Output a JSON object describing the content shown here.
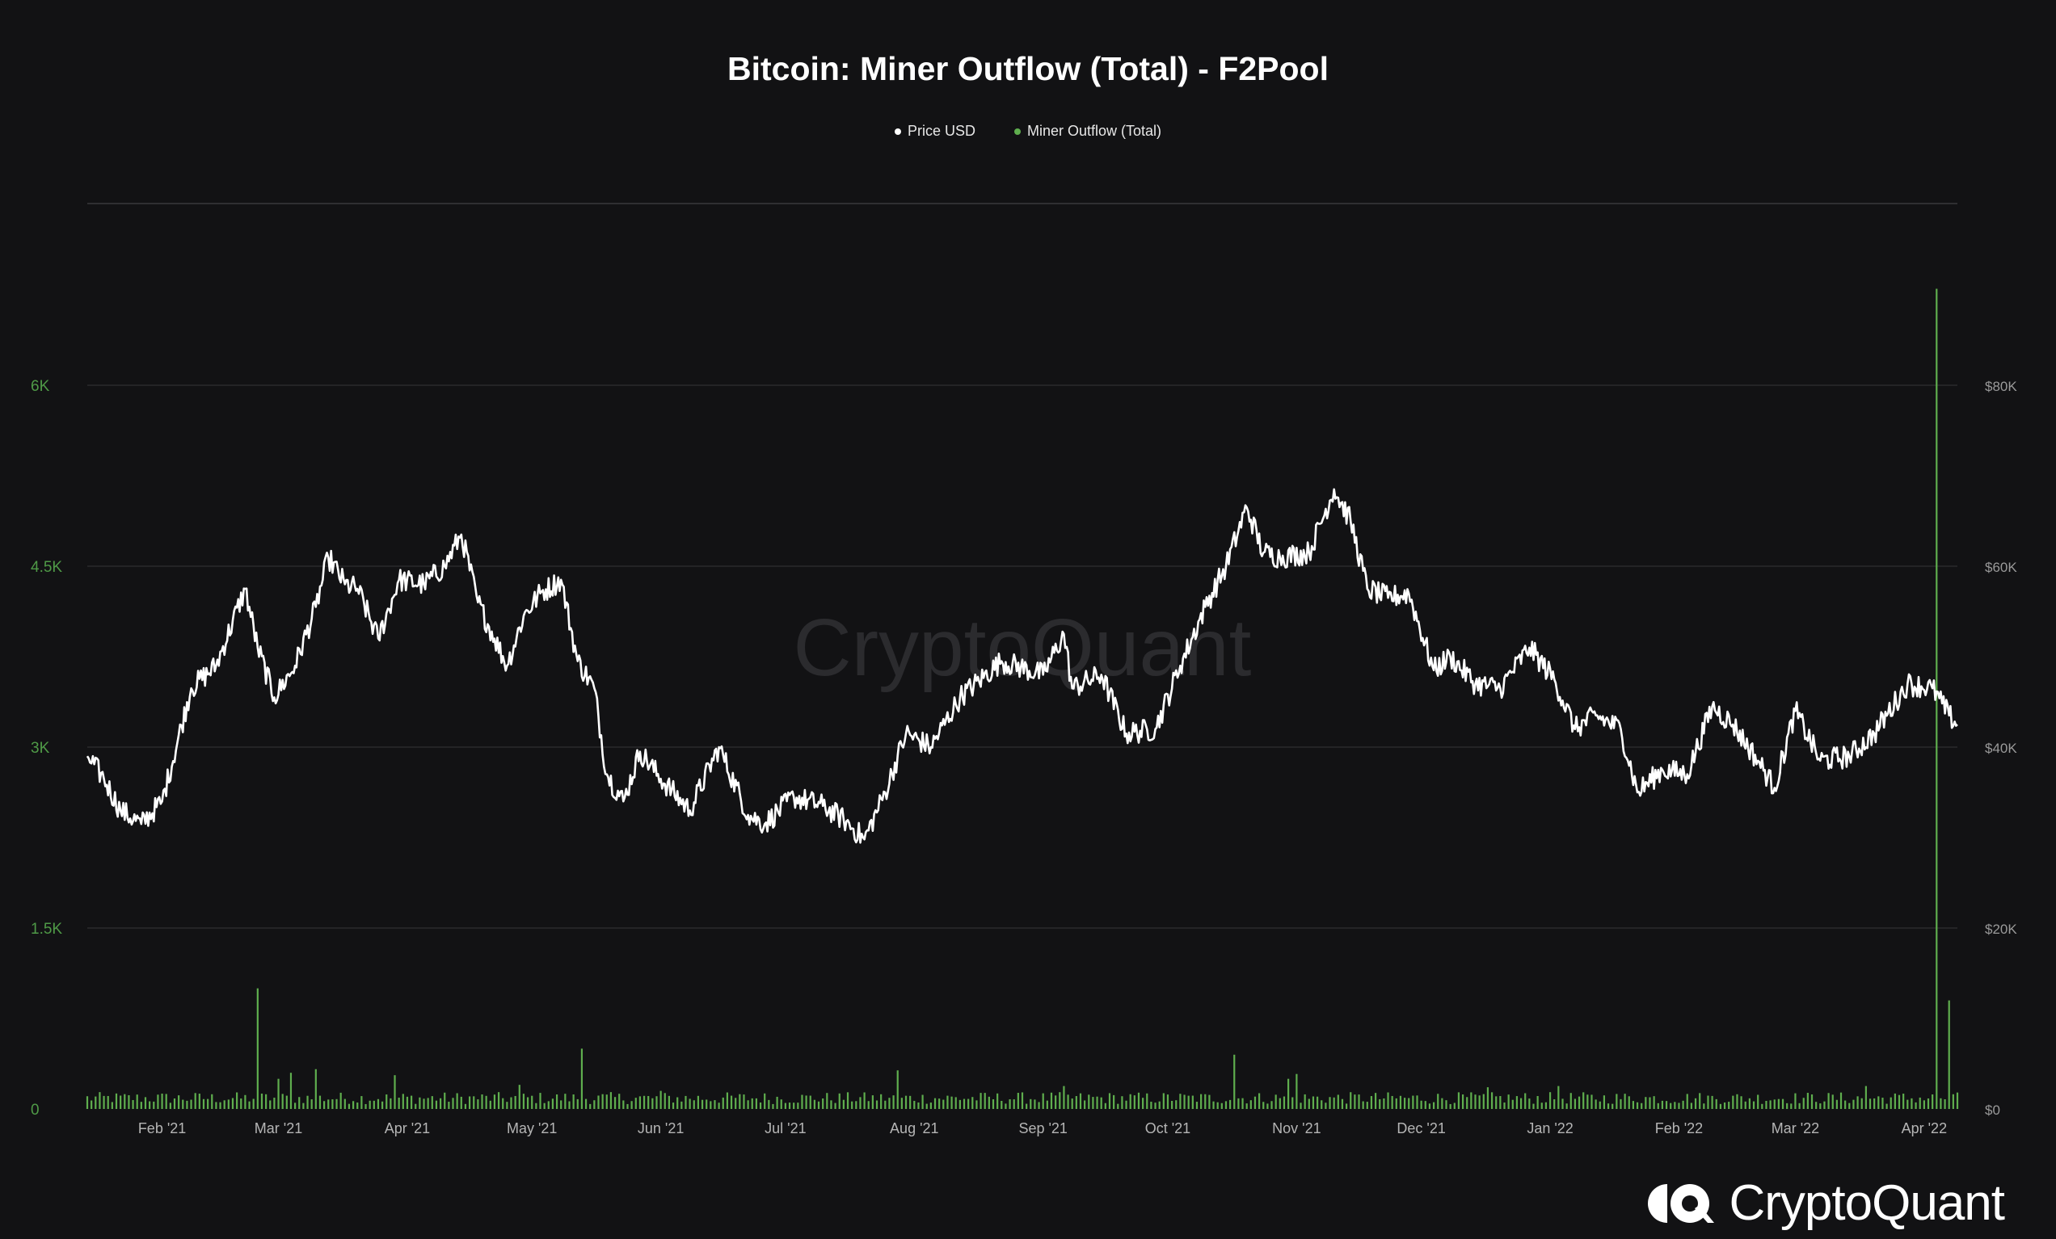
{
  "header": {
    "title": "Bitcoin: Miner Outflow (Total) - F2Pool"
  },
  "brand": {
    "name": "CryptoQuant",
    "watermark": "CryptoQuant"
  },
  "colors": {
    "price_line": "#ffffff",
    "outflow_bars": "#5fae4e",
    "left_axis_text": "#4f9a47",
    "right_axis_text": "#9a9a9a",
    "grid": "#2a2a2c",
    "background": "#121214"
  },
  "chart_data": {
    "type": "line",
    "title": "Bitcoin: Miner Outflow (Total) - F2Pool",
    "legend": {
      "placement": "top-center",
      "items": [
        "Price USD",
        "Miner Outflow (Total)"
      ]
    },
    "grid": true,
    "x_range": [
      "2021-01-14",
      "2022-04-09"
    ],
    "x_ticks": [
      {
        "date": "2021-02-01",
        "label": "Feb '21"
      },
      {
        "date": "2021-03-01",
        "label": "Mar '21"
      },
      {
        "date": "2021-04-01",
        "label": "Apr '21"
      },
      {
        "date": "2021-05-01",
        "label": "May '21"
      },
      {
        "date": "2021-06-01",
        "label": "Jun '21"
      },
      {
        "date": "2021-07-01",
        "label": "Jul '21"
      },
      {
        "date": "2021-08-01",
        "label": "Aug '21"
      },
      {
        "date": "2021-09-01",
        "label": "Sep '21"
      },
      {
        "date": "2021-10-01",
        "label": "Oct '21"
      },
      {
        "date": "2021-11-01",
        "label": "Nov '21"
      },
      {
        "date": "2021-12-01",
        "label": "Dec '21"
      },
      {
        "date": "2022-01-01",
        "label": "Jan '22"
      },
      {
        "date": "2022-02-01",
        "label": "Feb '22"
      },
      {
        "date": "2022-03-01",
        "label": "Mar '22"
      },
      {
        "date": "2022-04-01",
        "label": "Apr '22"
      }
    ],
    "y_left": {
      "range": [
        0,
        6000
      ],
      "ticks": [
        {
          "value": 0,
          "label": "0"
        },
        {
          "value": 1500,
          "label": "1.5K"
        },
        {
          "value": 3000,
          "label": "3K"
        },
        {
          "value": 4500,
          "label": "4.5K"
        },
        {
          "value": 6000,
          "label": "6K"
        }
      ]
    },
    "y_right": {
      "range": [
        0,
        80000
      ],
      "ticks": [
        {
          "value": 0,
          "label": "$0"
        },
        {
          "value": 20000,
          "label": "$20K"
        },
        {
          "value": 40000,
          "label": "$40K"
        },
        {
          "value": 60000,
          "label": "$60K"
        },
        {
          "value": 80000,
          "label": "$80K"
        }
      ]
    },
    "series": [
      {
        "name": "Price USD",
        "axis": "right",
        "style": "line",
        "points": [
          [
            "2021-01-14",
            39000
          ],
          [
            "2021-01-18",
            36500
          ],
          [
            "2021-01-22",
            33000
          ],
          [
            "2021-01-27",
            31500
          ],
          [
            "2021-02-01",
            34000
          ],
          [
            "2021-02-08",
            46500
          ],
          [
            "2021-02-14",
            49000
          ],
          [
            "2021-02-21",
            57500
          ],
          [
            "2021-02-24",
            51000
          ],
          [
            "2021-02-28",
            45500
          ],
          [
            "2021-03-05",
            49000
          ],
          [
            "2021-03-10",
            55500
          ],
          [
            "2021-03-13",
            61000
          ],
          [
            "2021-03-17",
            58000
          ],
          [
            "2021-03-20",
            57500
          ],
          [
            "2021-03-25",
            52000
          ],
          [
            "2021-03-30",
            58500
          ],
          [
            "2021-04-05",
            58000
          ],
          [
            "2021-04-10",
            60000
          ],
          [
            "2021-04-14",
            63500
          ],
          [
            "2021-04-18",
            56000
          ],
          [
            "2021-04-22",
            52000
          ],
          [
            "2021-04-25",
            49000
          ],
          [
            "2021-04-29",
            54500
          ],
          [
            "2021-05-03",
            57000
          ],
          [
            "2021-05-08",
            58500
          ],
          [
            "2021-05-12",
            49500
          ],
          [
            "2021-05-16",
            46500
          ],
          [
            "2021-05-19",
            37000
          ],
          [
            "2021-05-23",
            34000
          ],
          [
            "2021-05-27",
            39500
          ],
          [
            "2021-06-01",
            36500
          ],
          [
            "2021-06-08",
            33000
          ],
          [
            "2021-06-15",
            40000
          ],
          [
            "2021-06-22",
            32500
          ],
          [
            "2021-06-26",
            31500
          ],
          [
            "2021-07-03",
            34500
          ],
          [
            "2021-07-10",
            33500
          ],
          [
            "2021-07-15",
            32000
          ],
          [
            "2021-07-20",
            29800
          ],
          [
            "2021-07-25",
            35000
          ],
          [
            "2021-07-30",
            41500
          ],
          [
            "2021-08-05",
            40000
          ],
          [
            "2021-08-12",
            45500
          ],
          [
            "2021-08-22",
            49500
          ],
          [
            "2021-09-01",
            48000
          ],
          [
            "2021-09-06",
            52500
          ],
          [
            "2021-09-08",
            46500
          ],
          [
            "2021-09-15",
            48000
          ],
          [
            "2021-09-21",
            41500
          ],
          [
            "2021-09-28",
            42000
          ],
          [
            "2021-10-04",
            49000
          ],
          [
            "2021-10-10",
            55500
          ],
          [
            "2021-10-15",
            60000
          ],
          [
            "2021-10-20",
            66500
          ],
          [
            "2021-10-24",
            61500
          ],
          [
            "2021-10-28",
            61000
          ],
          [
            "2021-11-04",
            61500
          ],
          [
            "2021-11-10",
            68500
          ],
          [
            "2021-11-14",
            65000
          ],
          [
            "2021-11-18",
            57500
          ],
          [
            "2021-11-23",
            56500
          ],
          [
            "2021-11-28",
            57000
          ],
          [
            "2021-12-04",
            48500
          ],
          [
            "2021-12-08",
            50000
          ],
          [
            "2021-12-14",
            47000
          ],
          [
            "2021-12-20",
            46500
          ],
          [
            "2021-12-27",
            51000
          ],
          [
            "2022-01-02",
            47500
          ],
          [
            "2022-01-07",
            42000
          ],
          [
            "2022-01-12",
            43500
          ],
          [
            "2022-01-18",
            42000
          ],
          [
            "2022-01-22",
            35000
          ],
          [
            "2022-01-28",
            37500
          ],
          [
            "2022-02-03",
            37000
          ],
          [
            "2022-02-09",
            44500
          ],
          [
            "2022-02-14",
            42500
          ],
          [
            "2022-02-20",
            38500
          ],
          [
            "2022-02-24",
            35500
          ],
          [
            "2022-03-01",
            44000
          ],
          [
            "2022-03-07",
            38500
          ],
          [
            "2022-03-14",
            39000
          ],
          [
            "2022-03-20",
            41500
          ],
          [
            "2022-03-28",
            47000
          ],
          [
            "2022-04-03",
            46500
          ],
          [
            "2022-04-07",
            43500
          ],
          [
            "2022-04-09",
            42500
          ]
        ]
      },
      {
        "name": "Miner Outflow (Total)",
        "axis": "left",
        "style": "bar",
        "baseline_range": [
          40,
          140
        ],
        "spikes": [
          [
            "2021-02-24",
            1000
          ],
          [
            "2021-03-01",
            250
          ],
          [
            "2021-03-04",
            300
          ],
          [
            "2021-03-10",
            330
          ],
          [
            "2021-03-29",
            280
          ],
          [
            "2021-04-28",
            200
          ],
          [
            "2021-05-13",
            500
          ],
          [
            "2021-06-01",
            150
          ],
          [
            "2021-07-28",
            320
          ],
          [
            "2021-09-06",
            190
          ],
          [
            "2021-10-17",
            450
          ],
          [
            "2021-10-30",
            250
          ],
          [
            "2021-11-01",
            290
          ],
          [
            "2021-12-17",
            180
          ],
          [
            "2022-01-03",
            190
          ],
          [
            "2022-03-18",
            190
          ],
          [
            "2022-04-04",
            6800
          ],
          [
            "2022-04-07",
            900
          ]
        ]
      }
    ]
  }
}
